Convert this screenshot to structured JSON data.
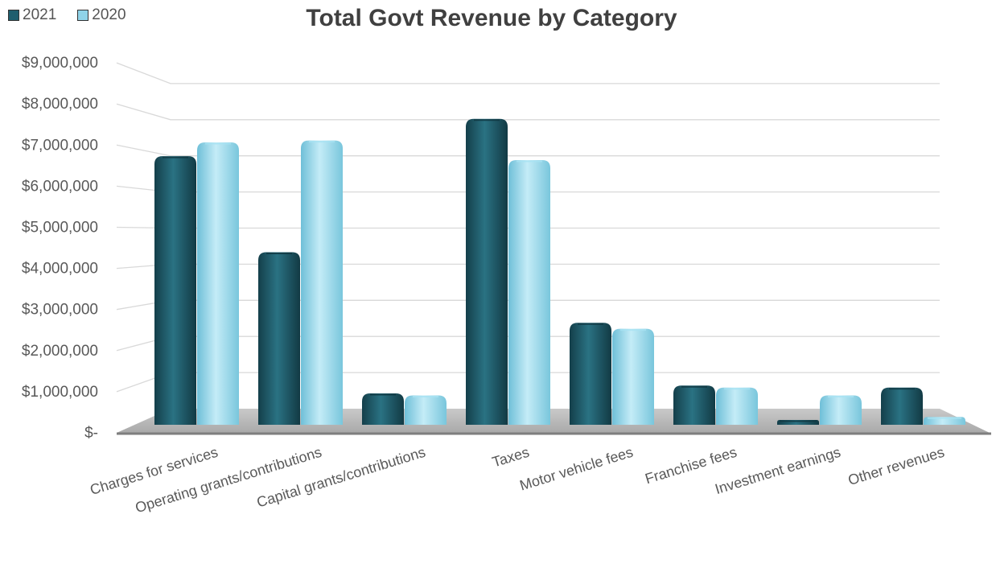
{
  "chart_data": {
    "type": "bar",
    "title": "Total Govt Revenue by Category",
    "categories": [
      "Charges for services",
      "Operating grants/contributions",
      "Capital grants/contributions",
      "Taxes",
      "Motor vehicle fees",
      "Franchise fees",
      "Investment earnings",
      "Other revenues"
    ],
    "series": [
      {
        "name": "2021",
        "values": [
          6850000,
          4400000,
          800000,
          7800000,
          2600000,
          1000000,
          100000,
          950000
        ],
        "color": "#1f5e6e"
      },
      {
        "name": "2020",
        "values": [
          7200000,
          7250000,
          750000,
          6750000,
          2450000,
          950000,
          750000,
          200000
        ],
        "color": "#8fd3e8"
      }
    ],
    "ylim": [
      0,
      9000000
    ],
    "y_ticks": [
      "$-",
      "$1,000,000",
      "$2,000,000",
      "$3,000,000",
      "$4,000,000",
      "$5,000,000",
      "$6,000,000",
      "$7,000,000",
      "$8,000,000",
      "$9,000,000"
    ],
    "legend_position": "top-left",
    "grid": true
  }
}
